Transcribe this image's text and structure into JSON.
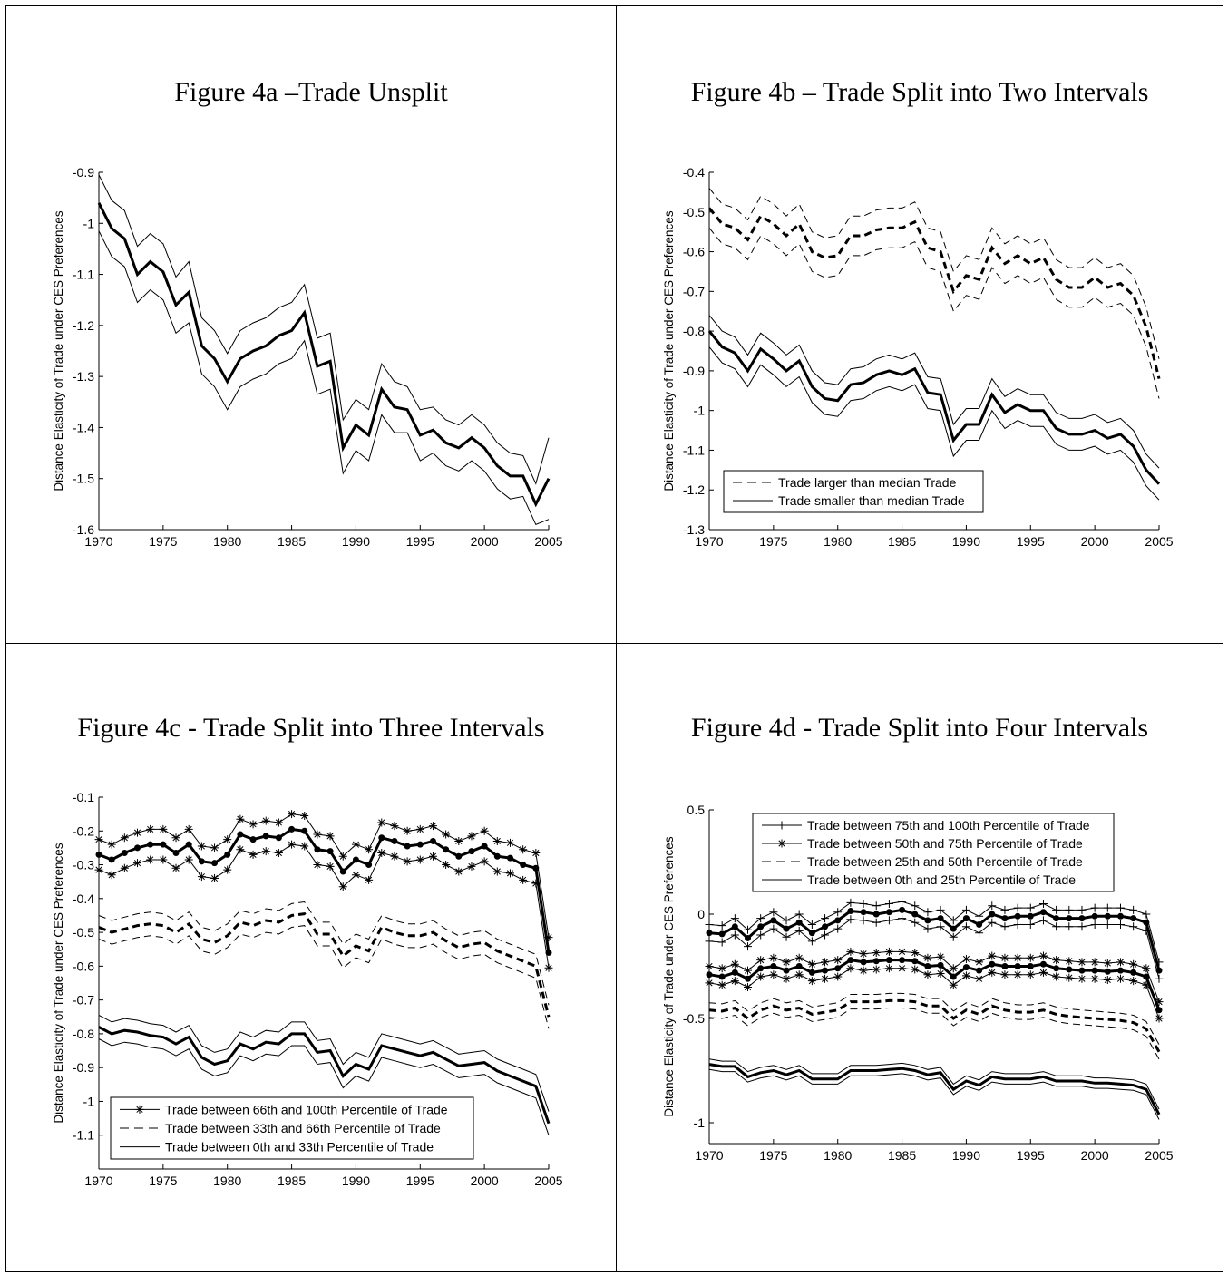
{
  "figures": [
    {
      "title": "Figure 4a –Trade Unsplit"
    },
    {
      "title": "Figure 4b – Trade Split into Two Intervals"
    },
    {
      "title": "Figure 4c - Trade Split into Three Intervals"
    },
    {
      "title": "Figure 4d - Trade Split into Four Intervals"
    }
  ],
  "chart_data": [
    {
      "type": "line",
      "ylabel": "Distance Elasticity of Trade under CES Preferences",
      "xlim": [
        1970,
        2005
      ],
      "ylim": [
        -1.6,
        -0.9
      ],
      "xticks": [
        "1970",
        "1975",
        "1980",
        "1985",
        "1990",
        "1995",
        "2000",
        "2005"
      ],
      "yticks": [
        "-1.6",
        "-1.5",
        "-1.4",
        "-1.3",
        "-1.2",
        "-1.1",
        "-1",
        "-0.9"
      ],
      "x": [
        1970,
        1971,
        1972,
        1973,
        1974,
        1975,
        1976,
        1977,
        1978,
        1979,
        1980,
        1981,
        1982,
        1983,
        1984,
        1985,
        1986,
        1987,
        1988,
        1989,
        1990,
        1991,
        1992,
        1993,
        1994,
        1995,
        1996,
        1997,
        1998,
        1999,
        2000,
        2001,
        2002,
        2003,
        2004,
        2005
      ],
      "series": [
        {
          "style": "solid-thick",
          "values": [
            -0.96,
            -1.01,
            -1.03,
            -1.1,
            -1.075,
            -1.095,
            -1.16,
            -1.135,
            -1.24,
            -1.265,
            -1.31,
            -1.265,
            -1.25,
            -1.24,
            -1.22,
            -1.21,
            -1.175,
            -1.28,
            -1.27,
            -1.44,
            -1.395,
            -1.415,
            -1.325,
            -1.36,
            -1.365,
            -1.415,
            -1.405,
            -1.43,
            -1.44,
            -1.42,
            -1.44,
            -1.475,
            -1.495,
            -1.495,
            -1.55,
            -1.5
          ]
        },
        {
          "style": "band-upper",
          "values": [
            -0.905,
            -0.955,
            -0.975,
            -1.045,
            -1.02,
            -1.04,
            -1.105,
            -1.075,
            -1.185,
            -1.21,
            -1.255,
            -1.21,
            -1.195,
            -1.185,
            -1.165,
            -1.155,
            -1.12,
            -1.225,
            -1.215,
            -1.385,
            -1.345,
            -1.365,
            -1.275,
            -1.31,
            -1.32,
            -1.365,
            -1.36,
            -1.385,
            -1.395,
            -1.375,
            -1.395,
            -1.43,
            -1.45,
            -1.455,
            -1.51,
            -1.42
          ]
        },
        {
          "style": "band-lower",
          "values": [
            -1.015,
            -1.065,
            -1.085,
            -1.155,
            -1.13,
            -1.15,
            -1.215,
            -1.195,
            -1.295,
            -1.32,
            -1.365,
            -1.32,
            -1.305,
            -1.295,
            -1.275,
            -1.265,
            -1.23,
            -1.335,
            -1.325,
            -1.49,
            -1.445,
            -1.465,
            -1.375,
            -1.41,
            -1.41,
            -1.465,
            -1.45,
            -1.475,
            -1.485,
            -1.465,
            -1.485,
            -1.52,
            -1.54,
            -1.535,
            -1.59,
            -1.58
          ]
        }
      ]
    },
    {
      "type": "line",
      "ylabel": "Distance Elasticity of Trade under CES Preferences",
      "xlim": [
        1970,
        2005
      ],
      "ylim": [
        -1.3,
        -0.4
      ],
      "xticks": [
        "1970",
        "1975",
        "1980",
        "1985",
        "1990",
        "1995",
        "2000",
        "2005"
      ],
      "yticks": [
        "-1.3",
        "-1.2",
        "-1.1",
        "-1",
        "-0.9",
        "-0.8",
        "-0.7",
        "-0.6",
        "-0.5",
        "-0.4"
      ],
      "legend_position": "bottom-left",
      "x": [
        1970,
        1971,
        1972,
        1973,
        1974,
        1975,
        1976,
        1977,
        1978,
        1979,
        1980,
        1981,
        1982,
        1983,
        1984,
        1985,
        1986,
        1987,
        1988,
        1989,
        1990,
        1991,
        1992,
        1993,
        1994,
        1995,
        1996,
        1997,
        1998,
        1999,
        2000,
        2001,
        2002,
        2003,
        2004,
        2005
      ],
      "series": [
        {
          "name": "Trade larger than median Trade",
          "style": "dashed",
          "band": 0.05,
          "values": [
            -0.49,
            -0.53,
            -0.54,
            -0.57,
            -0.51,
            -0.53,
            -0.56,
            -0.53,
            -0.6,
            -0.615,
            -0.61,
            -0.56,
            -0.56,
            -0.545,
            -0.54,
            -0.54,
            -0.525,
            -0.59,
            -0.6,
            -0.7,
            -0.66,
            -0.67,
            -0.59,
            -0.63,
            -0.61,
            -0.63,
            -0.615,
            -0.67,
            -0.69,
            -0.69,
            -0.665,
            -0.69,
            -0.68,
            -0.71,
            -0.79,
            -0.92
          ]
        },
        {
          "name": "Trade smaller than median Trade",
          "style": "solid",
          "band": 0.04,
          "values": [
            -0.8,
            -0.84,
            -0.855,
            -0.9,
            -0.845,
            -0.87,
            -0.9,
            -0.875,
            -0.94,
            -0.97,
            -0.975,
            -0.935,
            -0.93,
            -0.91,
            -0.9,
            -0.91,
            -0.895,
            -0.955,
            -0.96,
            -1.075,
            -1.035,
            -1.035,
            -0.96,
            -1.005,
            -0.985,
            -1.0,
            -1.0,
            -1.045,
            -1.06,
            -1.06,
            -1.05,
            -1.07,
            -1.06,
            -1.09,
            -1.15,
            -1.185
          ]
        }
      ]
    },
    {
      "type": "line",
      "ylabel": "Distance Elasticity of Trade under CES Preferences",
      "xlim": [
        1970,
        2005
      ],
      "ylim": [
        -1.2,
        -0.1
      ],
      "xticks": [
        "1970",
        "1975",
        "1980",
        "1985",
        "1990",
        "1995",
        "2000",
        "2005"
      ],
      "yticks": [
        "-1.1",
        "-1",
        "-0.9",
        "-0.8",
        "-0.7",
        "-0.6",
        "-0.5",
        "-0.4",
        "-0.3",
        "-0.2",
        "-0.1"
      ],
      "legend_position": "bottom-left",
      "x": [
        1970,
        1971,
        1972,
        1973,
        1974,
        1975,
        1976,
        1977,
        1978,
        1979,
        1980,
        1981,
        1982,
        1983,
        1984,
        1985,
        1986,
        1987,
        1988,
        1989,
        1990,
        1991,
        1992,
        1993,
        1994,
        1995,
        1996,
        1997,
        1998,
        1999,
        2000,
        2001,
        2002,
        2003,
        2004,
        2005
      ],
      "series": [
        {
          "name": "Trade between 66th and 100th Percentile of Trade",
          "style": "solid-star",
          "band": 0.045,
          "values": [
            -0.27,
            -0.285,
            -0.265,
            -0.25,
            -0.24,
            -0.24,
            -0.265,
            -0.24,
            -0.29,
            -0.295,
            -0.27,
            -0.21,
            -0.225,
            -0.215,
            -0.22,
            -0.195,
            -0.2,
            -0.255,
            -0.26,
            -0.32,
            -0.285,
            -0.3,
            -0.22,
            -0.23,
            -0.245,
            -0.24,
            -0.23,
            -0.255,
            -0.275,
            -0.26,
            -0.245,
            -0.275,
            -0.28,
            -0.3,
            -0.31,
            -0.56
          ]
        },
        {
          "name": "Trade between 33th and 66th Percentile of Trade",
          "style": "dashed",
          "band": 0.035,
          "values": [
            -0.485,
            -0.5,
            -0.49,
            -0.48,
            -0.475,
            -0.48,
            -0.5,
            -0.475,
            -0.52,
            -0.53,
            -0.51,
            -0.47,
            -0.48,
            -0.465,
            -0.47,
            -0.45,
            -0.445,
            -0.505,
            -0.505,
            -0.57,
            -0.54,
            -0.555,
            -0.485,
            -0.5,
            -0.51,
            -0.51,
            -0.5,
            -0.525,
            -0.545,
            -0.535,
            -0.53,
            -0.555,
            -0.57,
            -0.585,
            -0.6,
            -0.75
          ]
        },
        {
          "name": "Trade between 0th and 33th Percentile of Trade",
          "style": "solid",
          "band": 0.035,
          "values": [
            -0.78,
            -0.8,
            -0.79,
            -0.795,
            -0.805,
            -0.81,
            -0.83,
            -0.81,
            -0.87,
            -0.89,
            -0.88,
            -0.83,
            -0.845,
            -0.825,
            -0.83,
            -0.8,
            -0.8,
            -0.855,
            -0.85,
            -0.925,
            -0.89,
            -0.905,
            -0.835,
            -0.845,
            -0.855,
            -0.865,
            -0.855,
            -0.875,
            -0.895,
            -0.89,
            -0.885,
            -0.91,
            -0.925,
            -0.94,
            -0.955,
            -1.065
          ]
        }
      ]
    },
    {
      "type": "line",
      "ylabel": "Distance Elasticity of Trade under CES Preferences",
      "xlim": [
        1970,
        2005
      ],
      "ylim": [
        -1.1,
        0.5
      ],
      "xticks": [
        "1970",
        "1975",
        "1980",
        "1985",
        "1990",
        "1995",
        "2000",
        "2005"
      ],
      "yticks": [
        "-1",
        "-0.5",
        "0",
        "0.5"
      ],
      "legend_position": "top-left",
      "x": [
        1970,
        1971,
        1972,
        1973,
        1974,
        1975,
        1976,
        1977,
        1978,
        1979,
        1980,
        1981,
        1982,
        1983,
        1984,
        1985,
        1986,
        1987,
        1988,
        1989,
        1990,
        1991,
        1992,
        1993,
        1994,
        1995,
        1996,
        1997,
        1998,
        1999,
        2000,
        2001,
        2002,
        2003,
        2004,
        2005
      ],
      "series": [
        {
          "name": "Trade between 75th and 100th Percentile of Trade",
          "style": "solid-plus",
          "band": 0.04,
          "values": [
            -0.09,
            -0.095,
            -0.06,
            -0.115,
            -0.06,
            -0.03,
            -0.07,
            -0.04,
            -0.09,
            -0.06,
            -0.03,
            0.015,
            0.01,
            0.0,
            0.01,
            0.02,
            0.0,
            -0.03,
            -0.02,
            -0.07,
            -0.02,
            -0.05,
            0.0,
            -0.02,
            -0.01,
            -0.01,
            0.01,
            -0.02,
            -0.02,
            -0.02,
            -0.01,
            -0.01,
            -0.01,
            -0.02,
            -0.04,
            -0.27
          ]
        },
        {
          "name": "Trade between 50th and 75th Percentile of Trade",
          "style": "solid-star",
          "band": 0.04,
          "values": [
            -0.29,
            -0.3,
            -0.28,
            -0.31,
            -0.26,
            -0.25,
            -0.27,
            -0.25,
            -0.28,
            -0.27,
            -0.26,
            -0.22,
            -0.23,
            -0.225,
            -0.22,
            -0.22,
            -0.225,
            -0.25,
            -0.245,
            -0.3,
            -0.255,
            -0.27,
            -0.24,
            -0.25,
            -0.25,
            -0.25,
            -0.24,
            -0.26,
            -0.265,
            -0.27,
            -0.27,
            -0.275,
            -0.27,
            -0.28,
            -0.3,
            -0.46
          ]
        },
        {
          "name": "Trade between 25th and 50th Percentile of Trade",
          "style": "dashed",
          "band": 0.035,
          "values": [
            -0.46,
            -0.465,
            -0.45,
            -0.5,
            -0.46,
            -0.44,
            -0.46,
            -0.45,
            -0.48,
            -0.47,
            -0.46,
            -0.42,
            -0.42,
            -0.42,
            -0.415,
            -0.415,
            -0.42,
            -0.44,
            -0.44,
            -0.5,
            -0.46,
            -0.48,
            -0.44,
            -0.46,
            -0.47,
            -0.47,
            -0.46,
            -0.48,
            -0.49,
            -0.495,
            -0.5,
            -0.505,
            -0.51,
            -0.52,
            -0.55,
            -0.66
          ]
        },
        {
          "name": "Trade between 0th and 25th Percentile of Trade",
          "style": "solid",
          "band": 0.025,
          "values": [
            -0.72,
            -0.73,
            -0.73,
            -0.78,
            -0.76,
            -0.75,
            -0.77,
            -0.75,
            -0.79,
            -0.79,
            -0.79,
            -0.75,
            -0.75,
            -0.75,
            -0.745,
            -0.74,
            -0.75,
            -0.77,
            -0.76,
            -0.84,
            -0.8,
            -0.82,
            -0.78,
            -0.79,
            -0.79,
            -0.79,
            -0.78,
            -0.8,
            -0.8,
            -0.8,
            -0.81,
            -0.81,
            -0.815,
            -0.82,
            -0.84,
            -0.96
          ]
        }
      ]
    }
  ]
}
